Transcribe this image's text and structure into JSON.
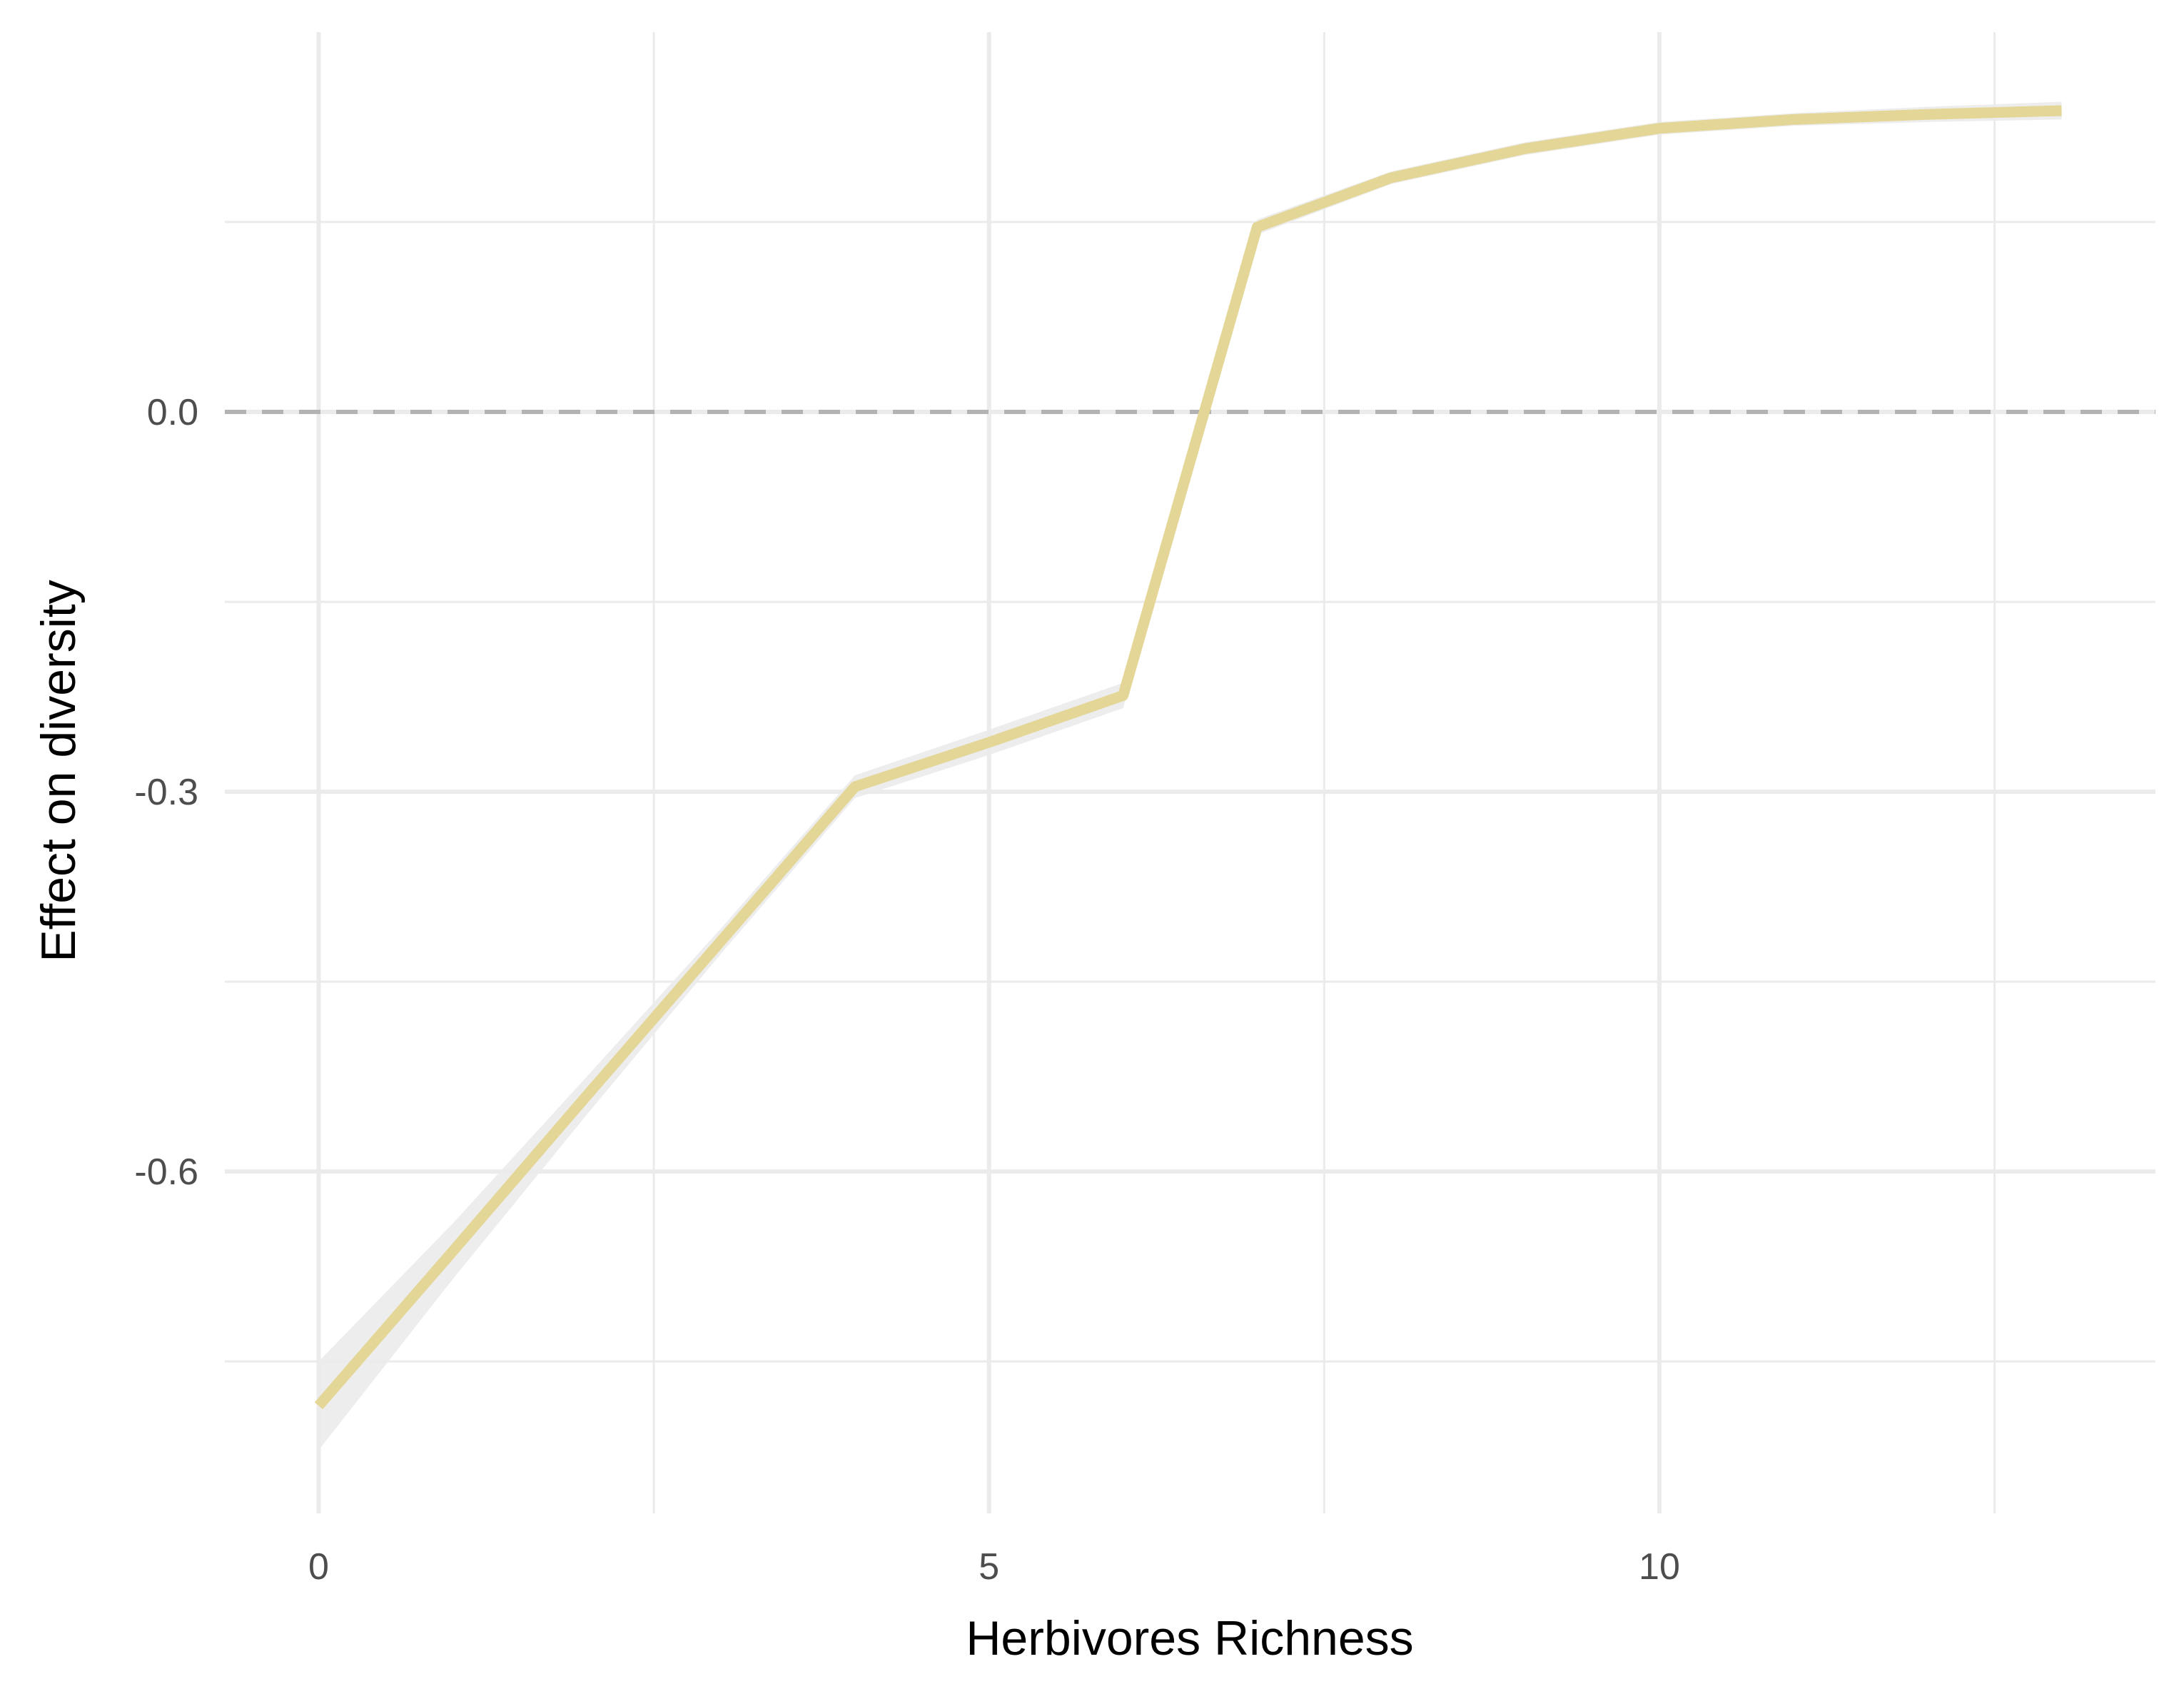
{
  "chart_data": {
    "type": "line",
    "xlabel": "Herbivores Richness",
    "ylabel": "Effect on diversity",
    "xlim": [
      -0.7,
      13.7
    ],
    "ylim": [
      -0.87,
      0.3
    ],
    "x_ticks": [
      0,
      5,
      10
    ],
    "x_tick_labels": [
      "0",
      "5",
      "10"
    ],
    "x_minor_ticks": [
      2.5,
      7.5,
      12.5
    ],
    "y_ticks": [
      -0.6,
      -0.3,
      0.0
    ],
    "y_tick_labels": [
      "-0.6",
      "-0.3",
      "0.0"
    ],
    "y_minor_ticks": [
      -0.75,
      -0.45,
      -0.15,
      0.15
    ],
    "grid": true,
    "reference_line": {
      "y": 0.0,
      "style": "dashed",
      "color": "#b3b3b3"
    },
    "series": [
      {
        "color": "#e3d696",
        "ribbon_color": "#ebebeb",
        "x": [
          0,
          1,
          2,
          3,
          4,
          5,
          6,
          7,
          8,
          9,
          10,
          11,
          12,
          13
        ],
        "y": [
          -0.785,
          -0.663,
          -0.54,
          -0.418,
          -0.296,
          -0.261,
          -0.224,
          0.146,
          0.185,
          0.208,
          0.224,
          0.231,
          0.235,
          0.238
        ],
        "lower": [
          -0.82,
          -0.685,
          -0.555,
          -0.428,
          -0.305,
          -0.271,
          -0.234,
          0.14,
          0.18,
          0.203,
          0.219,
          0.226,
          0.229,
          0.231
        ],
        "upper": [
          -0.75,
          -0.641,
          -0.525,
          -0.408,
          -0.287,
          -0.251,
          -0.214,
          0.152,
          0.19,
          0.213,
          0.229,
          0.236,
          0.241,
          0.245
        ]
      }
    ]
  }
}
